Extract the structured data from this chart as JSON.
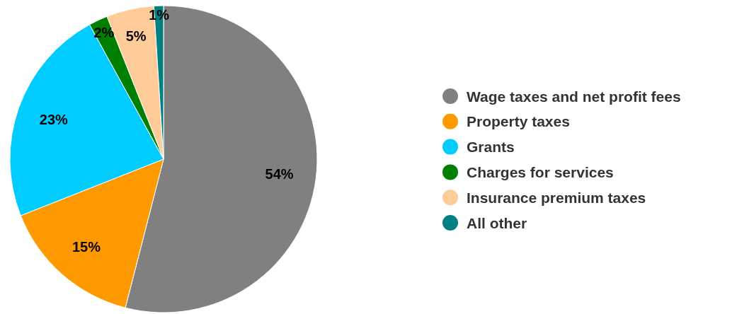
{
  "chart_data": {
    "type": "pie",
    "categories": [
      "Wage taxes and net profit fees",
      "Property taxes",
      "Grants",
      "Charges for services",
      "Insurance premium taxes",
      "All other"
    ],
    "values": [
      54,
      15,
      23,
      2,
      5,
      1
    ],
    "colors": [
      "#808080",
      "#ff9900",
      "#00ccff",
      "#008000",
      "#ffcc99",
      "#008080"
    ],
    "value_labels": [
      "54%",
      "15%",
      "23%",
      "2%",
      "5%",
      "1%"
    ],
    "legend": "right"
  }
}
